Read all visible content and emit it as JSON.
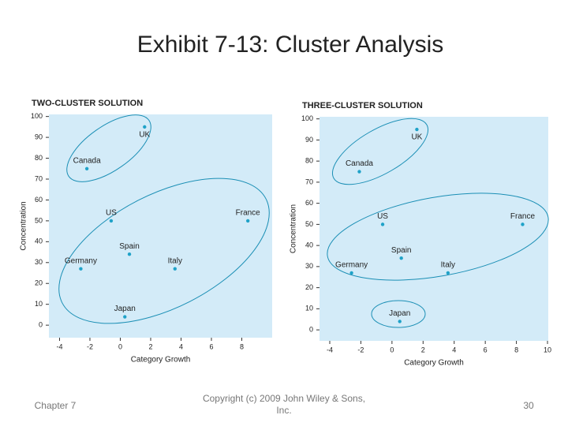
{
  "title": "Exhibit 7-13: Cluster Analysis",
  "footer": {
    "chapter": "Chapter 7",
    "copyright": "Copyright (c) 2009 John Wiley & Sons, Inc.",
    "page": "30"
  },
  "chart_data": [
    {
      "type": "scatter",
      "title": "TWO-CLUSTER SOLUTION",
      "x_label": "Category Growth",
      "y_label": "Concentration",
      "labels": [
        "UK",
        "Canada",
        "US",
        "France",
        "Spain",
        "Germany",
        "Italy",
        "Japan"
      ],
      "x": [
        1.6,
        -2.2,
        -0.6,
        8.4,
        0.6,
        -2.6,
        3.6,
        0.3
      ],
      "values": [
        95,
        75,
        50,
        50,
        34,
        27,
        27,
        4
      ],
      "color": "#1fa2c8",
      "xlim": [
        -4.7,
        10
      ],
      "xticks": [
        -4,
        -2,
        0,
        2,
        4,
        6,
        8
      ],
      "ylim": [
        -6,
        101
      ],
      "yticks": [
        0,
        10,
        20,
        30,
        40,
        50,
        60,
        70,
        80,
        90,
        100
      ]
    },
    {
      "type": "scatter",
      "title": "THREE-CLUSTER SOLUTION",
      "x_label": "Category Growth",
      "y_label": "Concentration",
      "labels": [
        "UK",
        "Canada",
        "US",
        "France",
        "Spain",
        "Germany",
        "Italy",
        "Japan"
      ],
      "x": [
        1.6,
        -2.1,
        -0.6,
        8.4,
        0.6,
        -2.6,
        3.6,
        0.5
      ],
      "values": [
        95,
        75,
        50,
        50,
        34,
        27,
        27,
        4
      ],
      "color": "#1fa2c8",
      "xlim": [
        -4.66,
        10.05
      ],
      "xticks": [
        -4,
        -2,
        0,
        2,
        4,
        6,
        8,
        10
      ],
      "ylim": [
        -5.2,
        101
      ],
      "yticks": [
        0,
        10,
        20,
        30,
        40,
        50,
        60,
        70,
        80,
        90,
        100
      ]
    }
  ]
}
